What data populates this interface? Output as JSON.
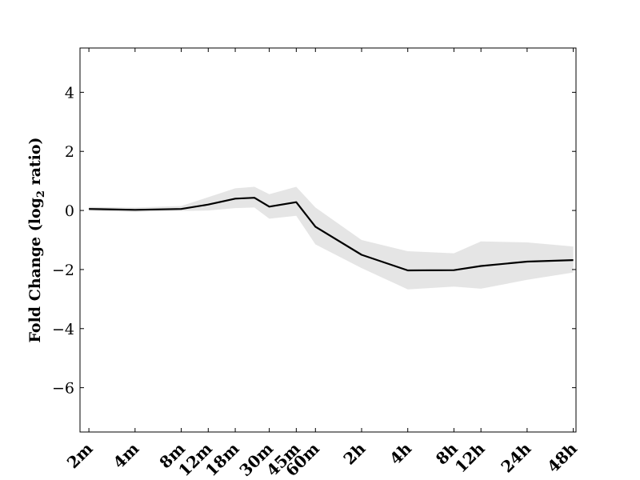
{
  "chart_data": {
    "type": "line",
    "title": "",
    "xlabel": "",
    "ylabel": {
      "prefix": "Fold Change (log",
      "subscript": "2",
      "suffix": " ratio)"
    },
    "x_scale": "log",
    "x": [
      2,
      4,
      8,
      12,
      18,
      24,
      30,
      45,
      60,
      120,
      240,
      480,
      720,
      1440,
      2880
    ],
    "x_unit": "minutes",
    "x_ticks": [
      {
        "value": 2,
        "label": "2m"
      },
      {
        "value": 4,
        "label": "4m"
      },
      {
        "value": 8,
        "label": "8m"
      },
      {
        "value": 12,
        "label": "12m"
      },
      {
        "value": 18,
        "label": "18m"
      },
      {
        "value": 30,
        "label": "30m"
      },
      {
        "value": 45,
        "label": "45m"
      },
      {
        "value": 60,
        "label": "60m"
      },
      {
        "value": 120,
        "label": "2h"
      },
      {
        "value": 240,
        "label": "4h"
      },
      {
        "value": 480,
        "label": "8h"
      },
      {
        "value": 720,
        "label": "12h"
      },
      {
        "value": 1440,
        "label": "24h"
      },
      {
        "value": 2880,
        "label": "48h"
      }
    ],
    "xlim": [
      1.75,
      3000
    ],
    "ylim": [
      -7.5,
      5.5
    ],
    "y_ticks": [
      {
        "value": 4,
        "label": "4"
      },
      {
        "value": 2,
        "label": "2"
      },
      {
        "value": 0,
        "label": "0"
      },
      {
        "value": -2,
        "label": "−2"
      },
      {
        "value": -4,
        "label": "−4"
      },
      {
        "value": -6,
        "label": "−6"
      }
    ],
    "series": [
      {
        "values": [
          0.05,
          0.02,
          0.05,
          0.2,
          0.4,
          0.43,
          0.13,
          0.28,
          -0.55,
          -1.5,
          -2.03,
          -2.02,
          -1.88,
          -1.73,
          -1.68
        ],
        "band_upper": [
          0.12,
          0.1,
          0.15,
          0.45,
          0.75,
          0.8,
          0.55,
          0.8,
          0.1,
          -1.0,
          -1.38,
          -1.45,
          -1.05,
          -1.08,
          -1.22
        ],
        "band_lower": [
          -0.02,
          -0.05,
          -0.02,
          0.0,
          0.08,
          0.1,
          -0.28,
          -0.18,
          -1.15,
          -1.95,
          -2.67,
          -2.58,
          -2.65,
          -2.35,
          -2.1
        ],
        "line_color": "#000000",
        "band_color": "#e5e5e5"
      }
    ],
    "grid": false,
    "legend": "none"
  }
}
